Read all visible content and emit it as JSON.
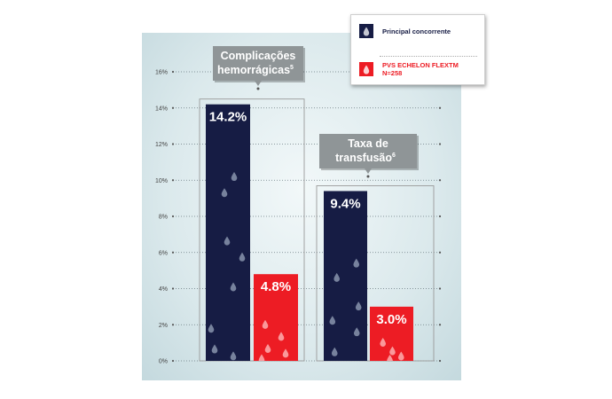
{
  "chart_data": {
    "type": "bar",
    "title": "",
    "xlabel": "",
    "ylabel": "",
    "ylim": [
      0,
      16
    ],
    "yticks": [
      0,
      2,
      4,
      6,
      8,
      10,
      12,
      14,
      16
    ],
    "ytick_labels": [
      "0%",
      "2%",
      "4%",
      "6%",
      "8%",
      "10%",
      "12%",
      "14%",
      "16%"
    ],
    "grid": true,
    "legend_position": "top-right",
    "groups": [
      {
        "label_line1": "Complicações",
        "label_line2": "hemorrágicas",
        "superscript": "5",
        "values": [
          14.2,
          4.8
        ],
        "value_labels": [
          "14.2%",
          "4.8%"
        ]
      },
      {
        "label_line1": "Taxa de",
        "label_line2": "transfusão",
        "superscript": "6",
        "values": [
          9.4,
          3.0
        ],
        "value_labels": [
          "9.4%",
          "3.0%"
        ]
      }
    ],
    "series": [
      {
        "name": "Principal concorrente",
        "color": "#161c44",
        "values": [
          14.2,
          9.4
        ]
      },
      {
        "name": "PVS ECHELON FLEXTM N=258",
        "color": "#ed1c24",
        "values": [
          4.8,
          3.0
        ]
      }
    ]
  },
  "legend": {
    "items": [
      {
        "line1": "Principal concorrente",
        "line2": "",
        "color": "#161c44",
        "text_color": "#161c44",
        "icon": "blood-drop-icon"
      },
      {
        "line1": "PVS ECHELON FLEXTM",
        "line2": "N=258",
        "color": "#ed1c24",
        "text_color": "#ed1c24",
        "icon": "blood-drop-icon"
      }
    ]
  },
  "colors": {
    "callout": "#8f9597",
    "bracket": "#9a9a9a",
    "grid": "#6a7a80"
  }
}
